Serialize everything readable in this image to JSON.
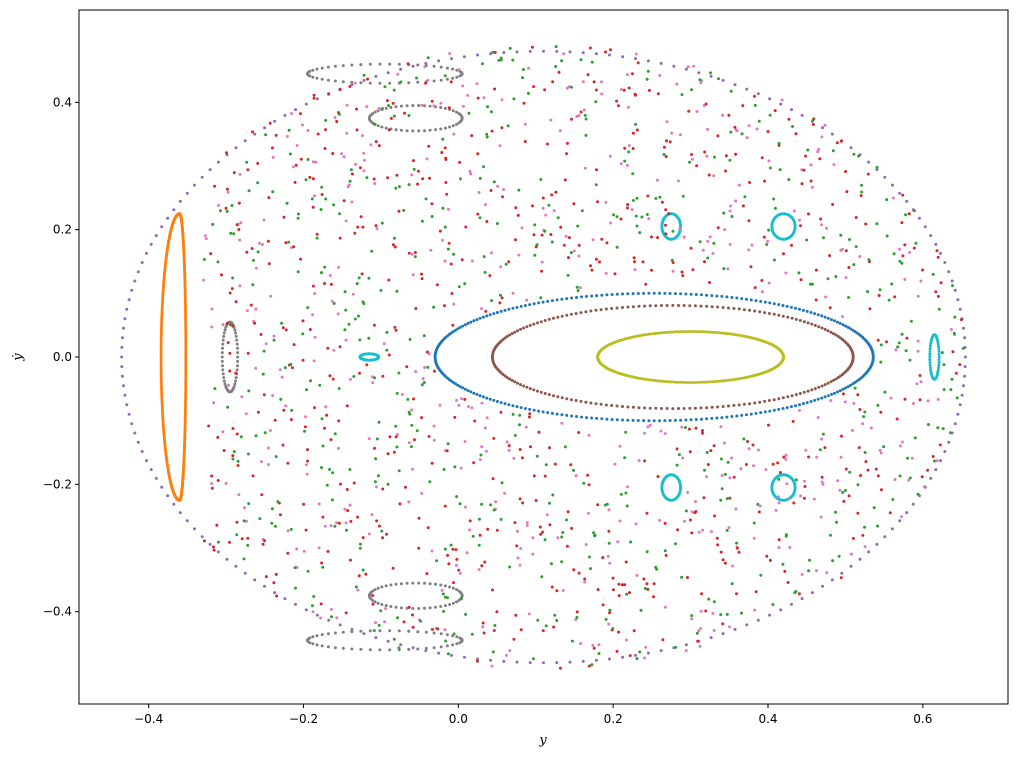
{
  "chart_data": {
    "type": "scatter",
    "title": "",
    "xlabel": "y",
    "ylabel": "ẏ",
    "xlim": [
      -0.49,
      0.71
    ],
    "ylim": [
      -0.545,
      0.545
    ],
    "xticks": [
      -0.4,
      -0.2,
      0.0,
      0.2,
      0.4,
      0.6
    ],
    "xtick_labels": [
      "−0.4",
      "−0.2",
      "0.0",
      "0.2",
      "0.4",
      "0.6"
    ],
    "yticks": [
      -0.4,
      -0.2,
      0.0,
      0.2,
      0.4
    ],
    "ytick_labels": [
      "−0.4",
      "−0.2",
      "0.0",
      "0.2",
      "0.4"
    ],
    "grid": false,
    "legend": "none",
    "series": [
      {
        "color": "#1f77b4",
        "kind": "torus",
        "center": [
          0.253,
          0.0
        ],
        "radii": [
          0.283,
          0.1
        ],
        "points": 260
      },
      {
        "color": "#8c564b",
        "kind": "torus",
        "center": [
          0.277,
          0.0
        ],
        "radii": [
          0.233,
          0.081
        ],
        "points": 200
      },
      {
        "color": "#bcbd22",
        "kind": "torus",
        "center": [
          0.3,
          0.0
        ],
        "radii": [
          0.12,
          0.04
        ],
        "points": 240
      },
      {
        "color": "#ff7f0e",
        "kind": "crescent",
        "center": [
          -0.36,
          0.0
        ],
        "radii": [
          0.04,
          0.225
        ],
        "points": 200
      },
      {
        "color": "#9467bd",
        "kind": "boundary",
        "points": 200
      },
      {
        "color": "#7f7f7f",
        "kind": "island-chain",
        "islands": [
          [
            -0.295,
            0.0,
            0.01,
            0.055
          ],
          [
            -0.055,
            0.375,
            0.06,
            0.02
          ],
          [
            -0.055,
            -0.375,
            0.06,
            0.02
          ],
          [
            -0.095,
            0.445,
            0.1,
            0.015
          ],
          [
            -0.095,
            -0.445,
            0.1,
            0.015
          ]
        ]
      },
      {
        "color": "#17becf",
        "kind": "island-chain",
        "islands": [
          [
            0.275,
            0.205,
            0.012,
            0.02
          ],
          [
            0.42,
            0.205,
            0.015,
            0.02
          ],
          [
            0.275,
            -0.205,
            0.012,
            0.02
          ],
          [
            0.42,
            -0.205,
            0.015,
            0.02
          ],
          [
            -0.115,
            0.0,
            0.012,
            0.005
          ],
          [
            0.615,
            0.0,
            0.006,
            0.035
          ]
        ]
      },
      {
        "color": "#e377c2",
        "kind": "chaotic",
        "points": 450
      },
      {
        "color": "#d62728",
        "kind": "chaotic",
        "points": 600
      },
      {
        "color": "#2ca02c",
        "kind": "chaotic",
        "points": 500
      }
    ]
  }
}
